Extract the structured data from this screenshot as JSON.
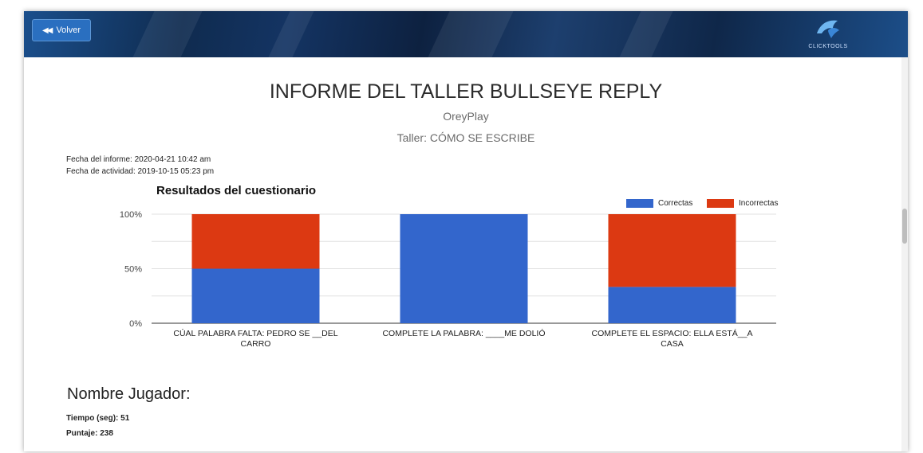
{
  "header": {
    "back_label": "Volver",
    "logo_text": "CLICKTOOLS"
  },
  "report": {
    "title": "INFORME DEL TALLER BULLSEYE REPLY",
    "org": "OreyPlay",
    "workshop": "Taller: CÓMO SE ESCRIBE",
    "report_date": "Fecha del informe: 2020-04-21 10:42 am",
    "activity_date": "Fecha de actividad: 2019-10-15 05:23 pm"
  },
  "chart_data": {
    "type": "bar",
    "stacked": true,
    "title": "Resultados del cuestionario",
    "categories": [
      [
        "CÚAL PALABRA FALTA: PEDRO SE __DEL",
        "CARRO"
      ],
      [
        "COMPLETE LA PALABRA: ____ME DOLIÓ"
      ],
      [
        "COMPLETE EL ESPACIO: ELLA ESTÁ__A",
        "CASA"
      ]
    ],
    "series": [
      {
        "name": "Correctas",
        "color": "#3366cc",
        "values": [
          50,
          100,
          33.3
        ]
      },
      {
        "name": "Incorrectas",
        "color": "#dc3912",
        "values": [
          50,
          0,
          66.7
        ]
      }
    ],
    "ylim": [
      0,
      100
    ],
    "yticks": [
      "0%",
      "50%",
      "100%"
    ],
    "legend": "top-right",
    "grid": true
  },
  "player": {
    "heading": "Nombre Jugador:",
    "time": "Tiempo (seg): 51",
    "score": "Puntaje: 238"
  }
}
